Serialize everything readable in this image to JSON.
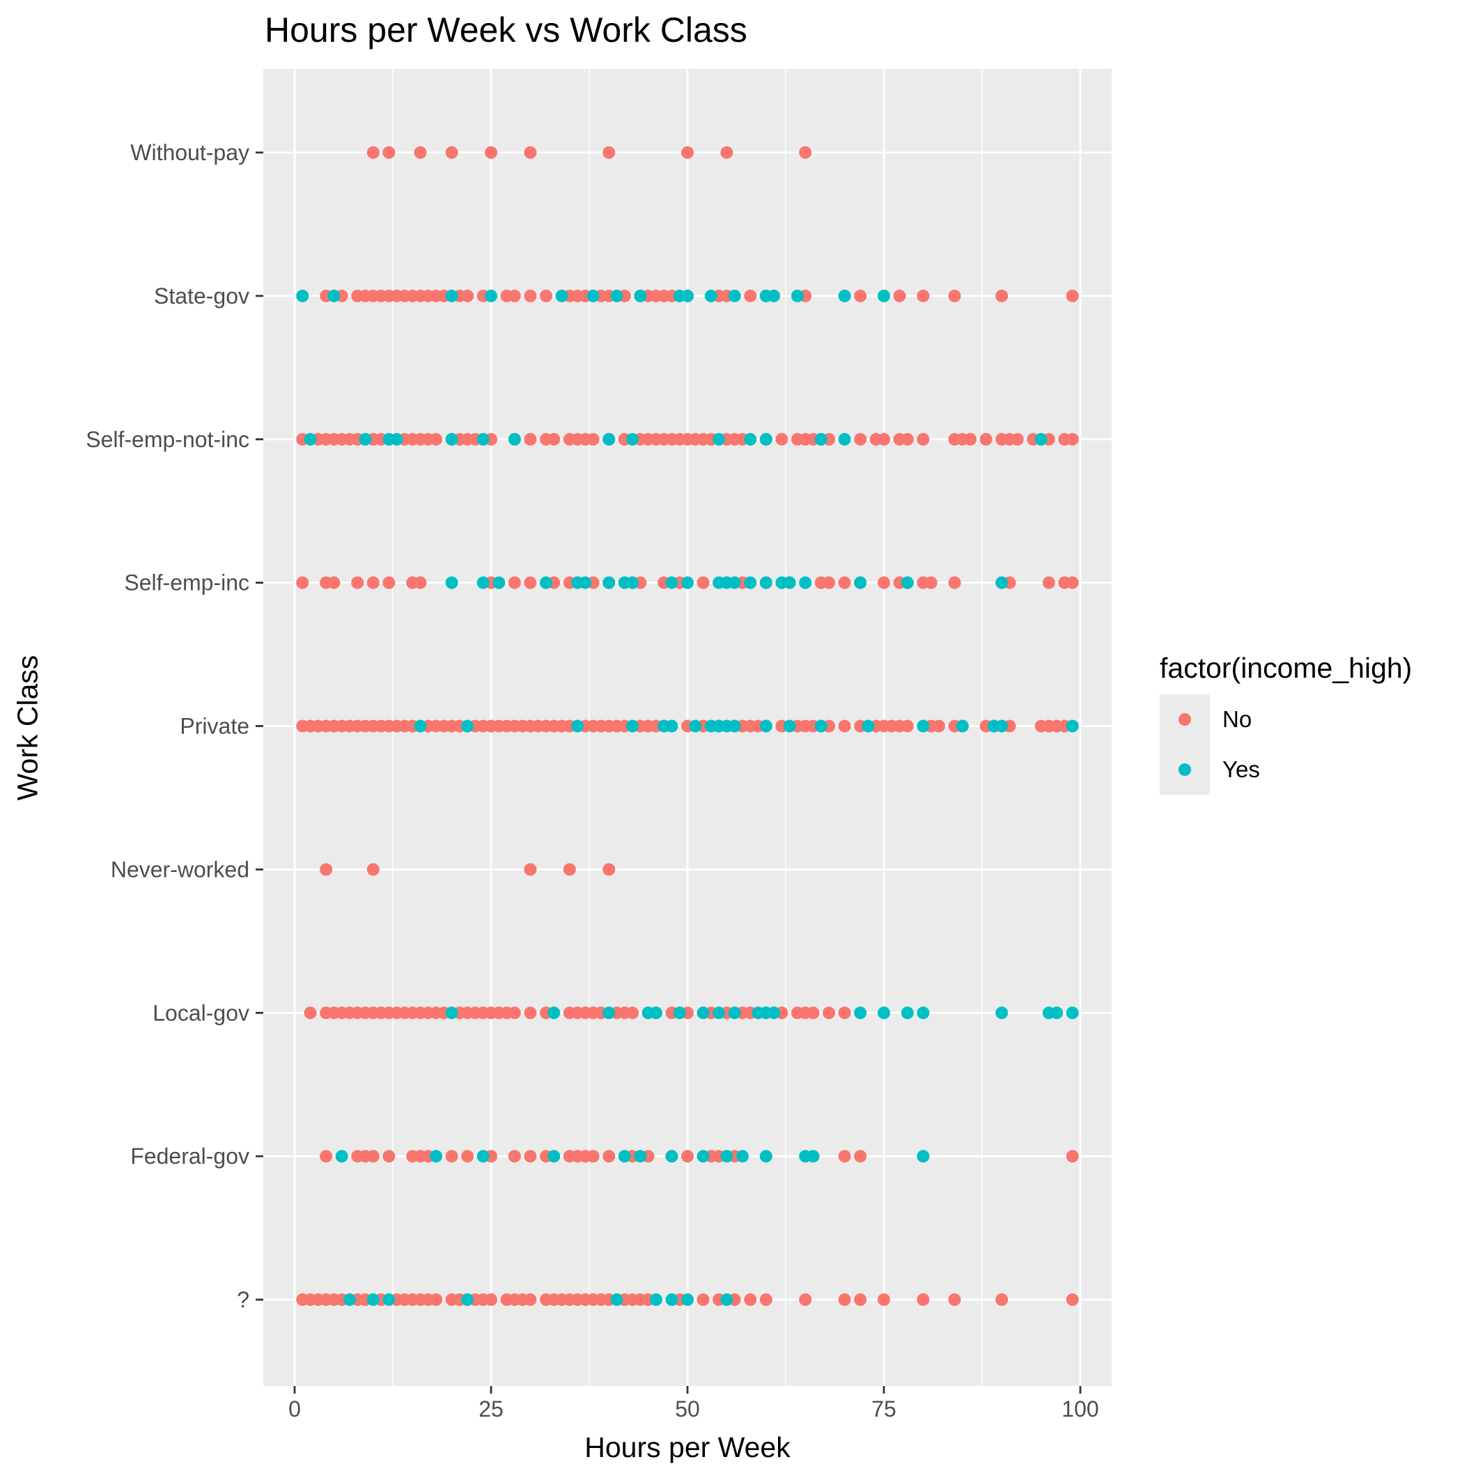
{
  "chart_data": {
    "type": "scatter",
    "title": "Hours per Week vs Work Class",
    "xlabel": "Hours per Week",
    "ylabel": "Work Class",
    "xlim": [
      -1,
      104
    ],
    "x_ticks": [
      0,
      25,
      50,
      75,
      100
    ],
    "categories": [
      "?",
      "Federal-gov",
      "Local-gov",
      "Never-worked",
      "Private",
      "Self-emp-inc",
      "Self-emp-not-inc",
      "State-gov",
      "Without-pay"
    ],
    "grid": true,
    "legend": {
      "title": "factor(income_high)",
      "position": "right",
      "entries": [
        {
          "label": "No",
          "color": "#F8766D"
        },
        {
          "label": "Yes",
          "color": "#00BFC4"
        }
      ]
    },
    "colors": {
      "No": "#F8766D",
      "Yes": "#00BFC4",
      "panel": "#EBEBEB",
      "grid": "#FFFFFF"
    },
    "series": [
      {
        "name": "No",
        "points": [
          {
            "category": "Without-pay",
            "x": [
              10,
              12,
              16,
              20,
              25,
              30,
              40,
              50,
              55,
              65
            ]
          },
          {
            "category": "State-gov",
            "x": [
              4,
              6,
              8,
              9,
              10,
              11,
              12,
              13,
              14,
              15,
              16,
              17,
              18,
              19,
              21,
              22,
              24,
              27,
              28,
              30,
              32,
              35,
              36,
              37,
              38,
              39,
              40,
              42,
              44,
              45,
              46,
              47,
              48,
              50,
              54,
              55,
              58,
              60,
              65,
              72,
              77,
              80,
              84,
              90,
              99
            ]
          },
          {
            "category": "Self-emp-not-inc",
            "x": [
              1,
              3,
              4,
              5,
              6,
              7,
              8,
              10,
              11,
              14,
              15,
              16,
              17,
              18,
              20,
              21,
              22,
              23,
              25,
              28,
              30,
              32,
              33,
              35,
              36,
              37,
              38,
              40,
              42,
              44,
              45,
              46,
              47,
              48,
              49,
              50,
              51,
              52,
              53,
              55,
              56,
              57,
              60,
              62,
              64,
              65,
              66,
              68,
              72,
              74,
              75,
              77,
              78,
              80,
              84,
              85,
              86,
              88,
              90,
              91,
              92,
              94,
              96,
              98,
              99
            ]
          },
          {
            "category": "Self-emp-inc",
            "x": [
              1,
              4,
              5,
              8,
              10,
              12,
              15,
              16,
              25,
              28,
              30,
              33,
              35,
              38,
              40,
              43,
              44,
              47,
              49,
              52,
              55,
              57,
              60,
              63,
              67,
              68,
              70,
              72,
              75,
              77,
              78,
              80,
              81,
              84,
              91,
              96,
              98,
              99
            ]
          },
          {
            "category": "Private",
            "x": [
              1,
              2,
              3,
              4,
              5,
              6,
              7,
              8,
              9,
              10,
              11,
              12,
              13,
              14,
              15,
              17,
              18,
              19,
              20,
              21,
              23,
              24,
              25,
              26,
              27,
              28,
              29,
              30,
              31,
              32,
              33,
              34,
              35,
              37,
              38,
              39,
              40,
              41,
              42,
              44,
              45,
              46,
              48,
              50,
              52,
              54,
              56,
              57,
              58,
              59,
              60,
              62,
              64,
              65,
              66,
              67,
              68,
              70,
              72,
              74,
              75,
              76,
              77,
              78,
              80,
              81,
              82,
              84,
              85,
              88,
              89,
              91,
              95,
              96,
              97,
              98
            ]
          },
          {
            "category": "Never-worked",
            "x": [
              4,
              10,
              30,
              35,
              40
            ]
          },
          {
            "category": "Local-gov",
            "x": [
              2,
              4,
              5,
              6,
              7,
              8,
              9,
              10,
              11,
              12,
              13,
              14,
              15,
              16,
              17,
              18,
              19,
              21,
              22,
              23,
              24,
              25,
              26,
              27,
              28,
              30,
              32,
              35,
              36,
              37,
              38,
              39,
              41,
              42,
              43,
              45,
              48,
              50,
              53,
              55,
              57,
              58,
              60,
              62,
              64,
              65,
              66,
              68,
              70
            ]
          },
          {
            "category": "Federal-gov",
            "x": [
              4,
              8,
              9,
              10,
              12,
              15,
              16,
              17,
              20,
              22,
              25,
              28,
              30,
              32,
              35,
              36,
              37,
              38,
              40,
              43,
              45,
              48,
              50,
              53,
              54,
              56,
              70,
              72,
              99
            ]
          },
          {
            "category": "?",
            "x": [
              1,
              2,
              3,
              4,
              5,
              6,
              8,
              9,
              11,
              13,
              14,
              15,
              16,
              17,
              18,
              20,
              21,
              23,
              24,
              25,
              27,
              28,
              29,
              30,
              32,
              33,
              34,
              35,
              36,
              37,
              38,
              39,
              40,
              42,
              43,
              44,
              45,
              49,
              52,
              54,
              56,
              58,
              60,
              65,
              70,
              72,
              75,
              80,
              84,
              90,
              99
            ]
          }
        ]
      },
      {
        "name": "Yes",
        "points": [
          {
            "category": "State-gov",
            "x": [
              1,
              5,
              20,
              25,
              34,
              38,
              41,
              44,
              49,
              50,
              53,
              56,
              60,
              61,
              64,
              70,
              75
            ]
          },
          {
            "category": "Self-emp-not-inc",
            "x": [
              2,
              9,
              12,
              13,
              20,
              24,
              28,
              40,
              43,
              54,
              58,
              60,
              67,
              70,
              95
            ]
          },
          {
            "category": "Self-emp-inc",
            "x": [
              20,
              24,
              26,
              32,
              36,
              37,
              40,
              42,
              43,
              48,
              50,
              54,
              55,
              56,
              58,
              60,
              62,
              63,
              65,
              72,
              78,
              90
            ]
          },
          {
            "category": "Private",
            "x": [
              16,
              22,
              36,
              43,
              47,
              48,
              51,
              53,
              54,
              55,
              56,
              60,
              63,
              67,
              73,
              80,
              85,
              89,
              90,
              99
            ]
          },
          {
            "category": "Local-gov",
            "x": [
              20,
              33,
              40,
              45,
              46,
              49,
              52,
              54,
              56,
              59,
              60,
              61,
              72,
              75,
              78,
              80,
              90,
              96,
              97,
              99
            ]
          },
          {
            "category": "Federal-gov",
            "x": [
              6,
              18,
              24,
              33,
              42,
              44,
              48,
              52,
              55,
              57,
              60,
              65,
              66,
              80
            ]
          },
          {
            "category": "?",
            "x": [
              7,
              10,
              12,
              22,
              41,
              46,
              48,
              50,
              55
            ]
          }
        ]
      }
    ]
  }
}
